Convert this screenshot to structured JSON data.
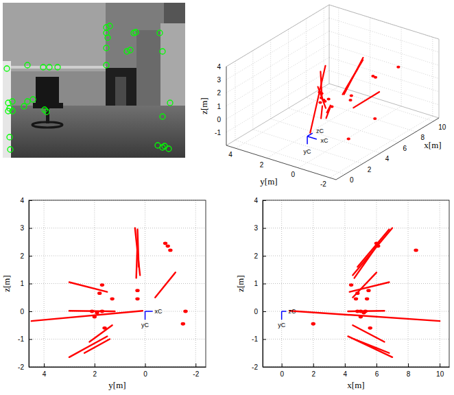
{
  "chart_data": [
    {
      "type": "image",
      "xlim": [
        0,
        266
      ],
      "ylim": [
        226,
        0
      ],
      "tick_labels": false,
      "color": "#00ff00",
      "marker": "circle",
      "x": [
        151,
        156,
        151,
        153,
        151,
        151,
        191,
        194,
        181,
        186,
        229,
        233,
        6,
        36,
        59,
        68,
        80,
        8,
        14,
        10,
        8,
        14,
        36,
        44,
        31,
        61,
        64,
        233,
        244,
        10,
        11,
        226,
        233,
        236,
        242
      ],
      "values": [
        36,
        34,
        44,
        51,
        66,
        91,
        44,
        43,
        71,
        69,
        44,
        71,
        96,
        91,
        94,
        94,
        94,
        146,
        144,
        154,
        158,
        158,
        144,
        141,
        151,
        156,
        159,
        166,
        146,
        196,
        214,
        208,
        211,
        209,
        213
      ]
    },
    {
      "type": "scatter3d",
      "xlabel": "x[m]",
      "ylabel": "y[m]",
      "zlabel": "z[m]",
      "xlim": [
        -1,
        10.6
      ],
      "ylim": [
        -2.4,
        4.6
      ],
      "zlim": [
        -2,
        4
      ],
      "xticks": [
        0,
        2,
        4,
        6,
        8,
        10
      ],
      "yticks": [
        -2,
        0,
        2,
        4
      ],
      "zticks": [
        -1,
        0,
        1,
        2,
        3,
        4
      ],
      "grid": true,
      "color": "#ff0000",
      "rays": {
        "x": [
          [
            0.5,
            10
          ],
          [
            4.5,
            7
          ],
          [
            4.8,
            6.8
          ],
          [
            4.6,
            6.2
          ],
          [
            4.3,
            6.8
          ],
          [
            4.2,
            7
          ],
          [
            4.5,
            6.5
          ],
          [
            4.5,
            6
          ],
          [
            4.2,
            6.5
          ],
          [
            4.6,
            6.8
          ]
        ],
        "y": [
          [
            0.1,
            4.5
          ],
          [
            0.2,
            0.4
          ],
          [
            0.25,
            0.3
          ],
          [
            0.35,
            0.3
          ],
          [
            1.5,
            3.0
          ],
          [
            1.5,
            3.0
          ],
          [
            1.3,
            2.2
          ],
          [
            -0.4,
            -1.2
          ],
          [
            1.2,
            3.0
          ],
          [
            1.4,
            2.4
          ]
        ],
        "z": [
          [
            0.02,
            -0.35
          ],
          [
            1.3,
            3.0
          ],
          [
            1.6,
            2.95
          ],
          [
            1.2,
            2.5
          ],
          [
            0.7,
            1.05
          ],
          [
            -0.9,
            -1.65
          ],
          [
            -0.5,
            -1.1
          ],
          [
            0.5,
            1.4
          ],
          [
            0.0,
            0.02
          ],
          [
            -1.0,
            -1.5
          ]
        ]
      },
      "points": {
        "x": [
          6,
          6.1,
          5.5,
          5.4,
          4.8,
          5,
          5.2,
          5.3,
          5,
          2,
          4.8,
          8.5,
          4.7,
          4.4,
          5.6
        ],
        "y": [
          -0.8,
          -0.9,
          0.3,
          0.3,
          1.8,
          1.7,
          1.9,
          2.1,
          2.0,
          -1.5,
          -1.6,
          -1.0,
          1.3,
          1.7,
          1.6
        ],
        "z": [
          2.45,
          2.35,
          0.75,
          0.45,
          0.65,
          0.0,
          -0.05,
          0.0,
          -0.2,
          -0.45,
          0.0,
          2.2,
          0.45,
          0.95,
          -0.6
        ]
      },
      "camera": {
        "labels": [
          "zC",
          "xC",
          "yC"
        ],
        "origin": [
          0,
          0,
          0
        ],
        "directions": [
          [
            1,
            0,
            0
          ],
          [
            0,
            -1,
            0
          ],
          [
            0,
            0,
            -1
          ]
        ],
        "length": 0.6,
        "color": "#0000ff"
      }
    },
    {
      "type": "scatter",
      "xlabel": "y[m]",
      "ylabel": "z[m]",
      "xlim": [
        4.6,
        -2.4
      ],
      "ylim": [
        -2,
        4
      ],
      "xticks": [
        4,
        2,
        0,
        -2
      ],
      "yticks": [
        -2,
        -1,
        0,
        1,
        2,
        3,
        4
      ],
      "grid": true,
      "color": "#ff0000",
      "rays": {
        "x": [
          [
            0.1,
            4.5
          ],
          [
            0.2,
            0.4
          ],
          [
            0.25,
            0.3
          ],
          [
            0.35,
            0.3
          ],
          [
            1.5,
            3.0
          ],
          [
            1.5,
            3.0
          ],
          [
            1.3,
            2.2
          ],
          [
            -0.4,
            -1.2
          ],
          [
            1.2,
            3.0
          ],
          [
            1.4,
            2.4
          ]
        ],
        "y": [
          [
            0.02,
            -0.35
          ],
          [
            1.3,
            3.0
          ],
          [
            1.6,
            2.95
          ],
          [
            1.2,
            2.5
          ],
          [
            0.7,
            1.05
          ],
          [
            -0.9,
            -1.65
          ],
          [
            -0.5,
            -1.1
          ],
          [
            0.5,
            1.4
          ],
          [
            0.0,
            0.02
          ],
          [
            -1.0,
            -1.5
          ]
        ]
      },
      "points": {
        "x": [
          -0.8,
          -0.9,
          0.3,
          0.3,
          1.8,
          1.7,
          1.9,
          2.1,
          2.0,
          -1.5,
          -1.6,
          -1.0,
          1.3,
          1.7,
          1.6
        ],
        "y": [
          2.45,
          2.35,
          0.75,
          0.45,
          0.65,
          0.0,
          -0.05,
          0.0,
          -0.2,
          -0.45,
          0.0,
          2.2,
          0.45,
          0.95,
          -0.6
        ]
      },
      "camera": {
        "labels": [
          "xC",
          "yC"
        ],
        "origin": [
          0,
          0
        ],
        "directions": [
          [
            -1,
            0
          ],
          [
            0,
            -1
          ]
        ],
        "length": 0.3,
        "color": "#0000ff"
      }
    },
    {
      "type": "scatter",
      "xlabel": "x[m]",
      "ylabel": "z[m]",
      "xlim": [
        -1.2,
        10.6
      ],
      "ylim": [
        -2,
        4
      ],
      "xticks": [
        0,
        2,
        4,
        6,
        8,
        10
      ],
      "yticks": [
        -2,
        -1,
        0,
        1,
        2,
        3,
        4
      ],
      "grid": true,
      "color": "#ff0000",
      "rays": {
        "x": [
          [
            0.5,
            10
          ],
          [
            4.5,
            7
          ],
          [
            4.8,
            6.8
          ],
          [
            4.6,
            6.2
          ],
          [
            4.3,
            6.8
          ],
          [
            4.2,
            7
          ],
          [
            4.5,
            6.5
          ],
          [
            4.5,
            6
          ],
          [
            4.2,
            6.5
          ],
          [
            4.6,
            6.8
          ]
        ],
        "y": [
          [
            0.02,
            -0.35
          ],
          [
            1.3,
            3.0
          ],
          [
            1.6,
            2.95
          ],
          [
            1.2,
            2.5
          ],
          [
            0.7,
            1.05
          ],
          [
            -0.9,
            -1.65
          ],
          [
            -0.5,
            -1.1
          ],
          [
            0.5,
            1.4
          ],
          [
            0.0,
            0.02
          ],
          [
            -1.0,
            -1.5
          ]
        ]
      },
      "points": {
        "x": [
          6,
          6.1,
          5.5,
          5.4,
          4.8,
          5,
          5.2,
          5.3,
          5,
          2,
          4.8,
          8.5,
          4.7,
          4.4,
          5.6
        ],
        "y": [
          2.45,
          2.35,
          0.75,
          0.45,
          0.65,
          0.0,
          -0.05,
          0.0,
          -0.2,
          -0.45,
          0.0,
          2.2,
          0.45,
          0.95,
          -0.6
        ]
      },
      "camera": {
        "labels": [
          "zC",
          "yC"
        ],
        "origin": [
          0,
          0
        ],
        "directions": [
          [
            1,
            0
          ],
          [
            0,
            -1
          ]
        ],
        "length": 0.3,
        "color": "#0000ff"
      }
    }
  ]
}
